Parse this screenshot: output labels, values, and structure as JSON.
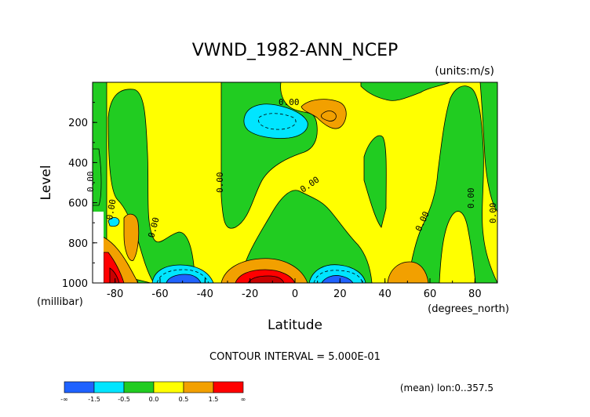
{
  "title": "VWND_1982-ANN_NCEP",
  "units": "(units:m/s)",
  "ylabel": "Level",
  "y_unit": "(millibar)",
  "xlabel": "Latitude",
  "x_unit": "(degrees_north)",
  "contour_interval": "CONTOUR INTERVAL = 5.000E-01",
  "footer_note": "(mean) lon:0..357.5",
  "colors": {
    "navy": "#0a3fb3",
    "blue": "#1f62ff",
    "cyan": "#00e5ff",
    "green": "#21cc21",
    "yellow": "#ffff00",
    "orange": "#f2a000",
    "red": "#ff0000",
    "darkred": "#c80000"
  },
  "colorbar": {
    "colors": [
      "#1f62ff",
      "#00e5ff",
      "#21cc21",
      "#ffff00",
      "#f2a000",
      "#ff0000"
    ],
    "labels": [
      "-∞",
      "-1.5",
      "-0.5",
      "0.0",
      "0.5",
      "1.5",
      "∞"
    ]
  },
  "chart_data": {
    "type": "contour",
    "variable": "VWND",
    "x": {
      "label": "Latitude",
      "units": "degrees_north",
      "range": [
        -90,
        90
      ],
      "ticks": [
        -80,
        -60,
        -40,
        -20,
        0,
        20,
        40,
        60,
        80
      ]
    },
    "y": {
      "label": "Level",
      "units": "millibar",
      "range": [
        1000,
        0
      ],
      "ticks": [
        200,
        400,
        600,
        800,
        1000
      ]
    },
    "contour_interval": 0.5,
    "contour_labels": [
      "0.00",
      "0.00",
      "0.00",
      "0.00",
      "0.00",
      "0.00",
      "0.00",
      "0.00",
      "0.00",
      "0.00"
    ],
    "features": [
      {
        "type": "min",
        "lat": -5,
        "level": 180,
        "value": -1.0
      },
      {
        "type": "max",
        "lat": 15,
        "level": 160,
        "value": 1.0
      },
      {
        "type": "min",
        "lat": -52,
        "level": 990,
        "value": -1.5
      },
      {
        "type": "max",
        "lat": -15,
        "level": 990,
        "value": 1.5
      },
      {
        "type": "min",
        "lat": 17,
        "level": 990,
        "value": -1.5
      },
      {
        "type": "max",
        "lat": 50,
        "level": 960,
        "value": 0.5
      },
      {
        "type": "max",
        "lat": -85,
        "level": 960,
        "value": 1.5
      }
    ]
  }
}
